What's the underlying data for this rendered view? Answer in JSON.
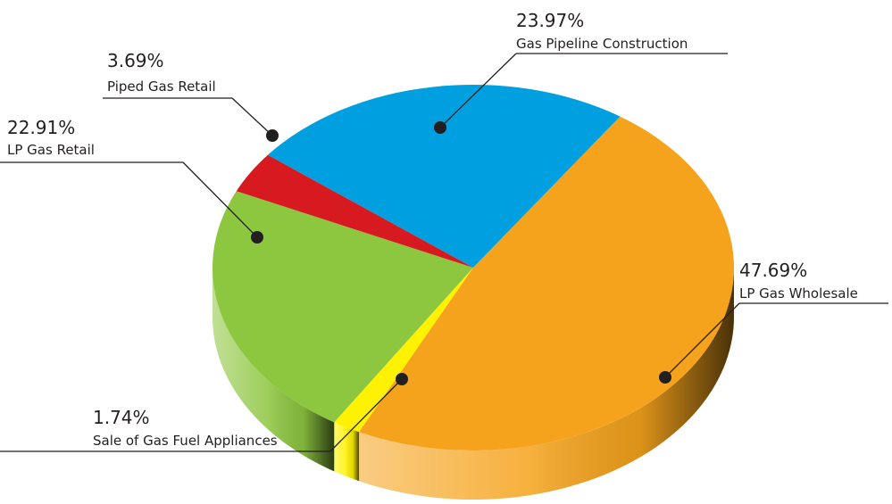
{
  "chart_data": {
    "type": "pie",
    "categories": [
      "Gas Pipeline Construction",
      "LP Gas Wholesale",
      "Sale of Gas Fuel Appliances",
      "LP Gas Retail",
      "Piped Gas Retail"
    ],
    "values": [
      23.97,
      47.69,
      1.74,
      22.91,
      3.69
    ],
    "value_labels": [
      "23.97%",
      "47.69%",
      "1.74%",
      "22.91%",
      "3.69%"
    ],
    "colors": [
      "#00a0e0",
      "#f5a31c",
      "#fff200",
      "#8dc63f",
      "#d71920"
    ]
  }
}
